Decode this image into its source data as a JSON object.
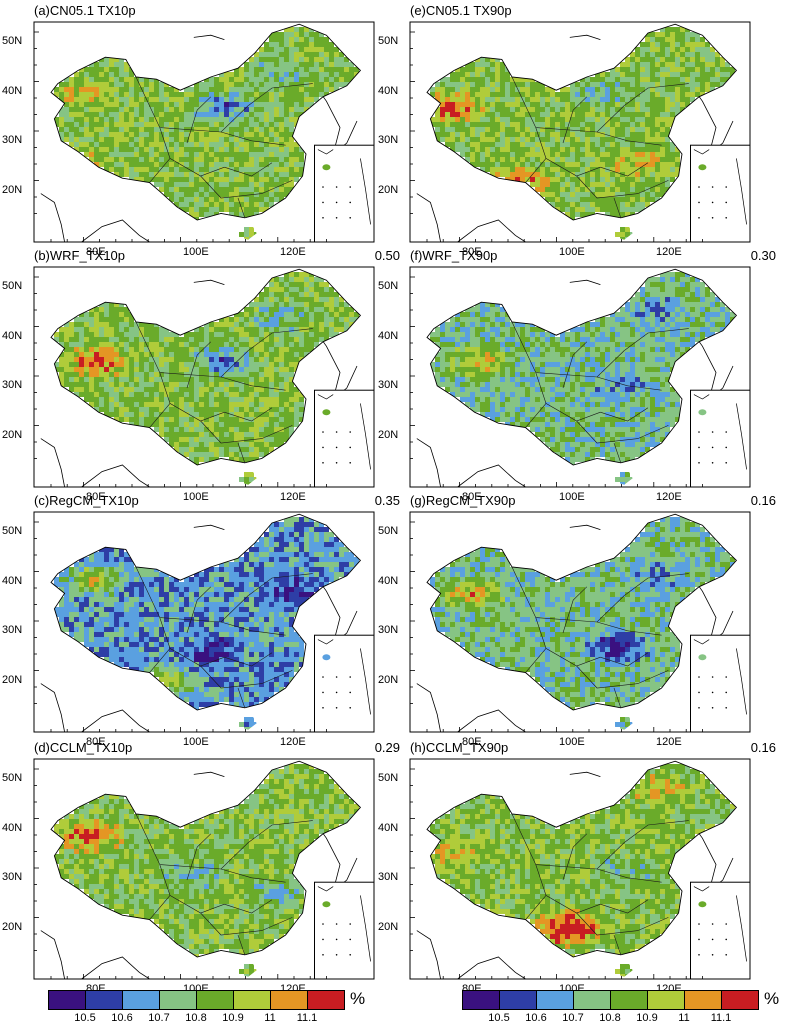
{
  "palette": [
    "#3a1180",
    "#2e3ea6",
    "#5aa0e0",
    "#86c484",
    "#6aab2a",
    "#b0cc3a",
    "#e49624",
    "#c81d22"
  ],
  "lon_ticks": [
    "80E",
    "100E",
    "120E"
  ],
  "lat_ticks": [
    "50N",
    "40N",
    "30N",
    "20N"
  ],
  "panels": [
    {
      "id": "a",
      "title": "(a)CN05.1 TX10p",
      "score": "",
      "bias": {
        "base": 4,
        "spots": [
          [
            0.15,
            0.32,
            1,
            7
          ],
          [
            0.56,
            0.38,
            -2,
            2
          ],
          [
            0.13,
            0.62,
            1,
            6
          ],
          [
            0.72,
            0.21,
            -1,
            3
          ]
        ]
      }
    },
    {
      "id": "e",
      "title": "(e)CN05.1 TX90p",
      "score": "",
      "bias": {
        "base": 4,
        "spots": [
          [
            0.12,
            0.38,
            2,
            7
          ],
          [
            0.31,
            0.72,
            2,
            7
          ],
          [
            0.67,
            0.62,
            1,
            6
          ],
          [
            0.56,
            0.31,
            -1,
            3
          ]
        ]
      }
    },
    {
      "id": "b",
      "title": "(b)WRF_TX10p",
      "score": "0.50",
      "bias": {
        "base": 4,
        "spots": [
          [
            0.18,
            0.42,
            2,
            7
          ],
          [
            0.55,
            0.42,
            -2,
            2
          ],
          [
            0.72,
            0.22,
            -1,
            3
          ]
        ]
      }
    },
    {
      "id": "f",
      "title": "(f)WRF_TX90p",
      "score": "0.30",
      "bias": {
        "base": 3,
        "spots": [
          [
            0.2,
            0.42,
            2,
            7
          ],
          [
            0.62,
            0.52,
            -1,
            3
          ],
          [
            0.72,
            0.2,
            -1,
            3
          ]
        ]
      }
    },
    {
      "id": "c",
      "title": "(c)RegCM_TX10p",
      "score": "0.35",
      "bias": {
        "base": 2,
        "spots": [
          [
            0.17,
            0.3,
            2,
            5
          ],
          [
            0.5,
            0.62,
            -1,
            1
          ],
          [
            0.75,
            0.35,
            -1,
            1
          ],
          [
            0.37,
            0.76,
            2,
            6
          ]
        ]
      }
    },
    {
      "id": "g",
      "title": "(g)RegCM_TX90p",
      "score": "0.16",
      "bias": {
        "base": 3,
        "spots": [
          [
            0.18,
            0.36,
            2,
            5
          ],
          [
            0.6,
            0.6,
            -2,
            1
          ],
          [
            0.72,
            0.28,
            -1,
            2
          ]
        ]
      }
    },
    {
      "id": "d",
      "title": "(d)CCLM_TX10p",
      "score": "0.29",
      "bias": {
        "base": 4,
        "spots": [
          [
            0.16,
            0.34,
            2,
            6
          ],
          [
            0.45,
            0.52,
            -1,
            2
          ],
          [
            0.26,
            0.76,
            1,
            6
          ],
          [
            0.7,
            0.6,
            -1,
            3
          ]
        ]
      }
    },
    {
      "id": "h",
      "title": "(h)CCLM_TX90p",
      "score": "0.16",
      "bias": {
        "base": 4,
        "spots": [
          [
            0.46,
            0.76,
            3,
            7
          ],
          [
            0.12,
            0.42,
            1,
            6
          ],
          [
            0.73,
            0.12,
            1,
            6
          ],
          [
            0.62,
            0.5,
            -1,
            3
          ]
        ]
      }
    }
  ],
  "colorbars": [
    {
      "id": "left",
      "ticks": [
        "10.5",
        "10.6",
        "10.7",
        "10.8",
        "10.9",
        "11",
        "11.1"
      ],
      "unit": "%"
    },
    {
      "id": "right",
      "ticks": [
        "10.5",
        "10.6",
        "10.7",
        "10.8",
        "10.9",
        "11",
        "11.1"
      ],
      "unit": "%"
    }
  ]
}
